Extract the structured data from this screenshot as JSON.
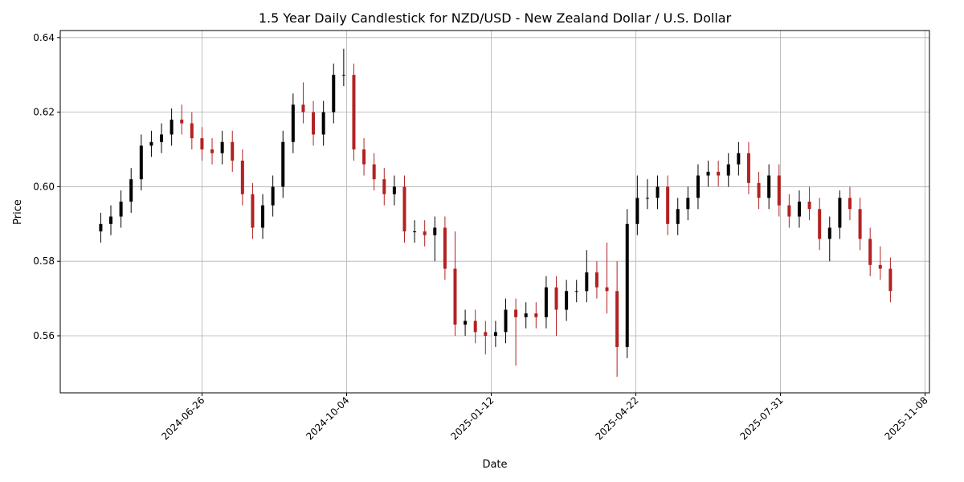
{
  "chart_data": {
    "type": "candlestick",
    "title": "1.5 Year Daily Candlestick for NZD/USD - New Zealand Dollar / U.S. Dollar",
    "x_label": "Date",
    "y_label": "Price",
    "x": [
      "2024-04-17",
      "2024-04-24",
      "2024-05-01",
      "2024-05-08",
      "2024-05-15",
      "2024-05-22",
      "2024-05-29",
      "2024-06-05",
      "2024-06-12",
      "2024-06-19",
      "2024-06-26",
      "2024-07-03",
      "2024-07-10",
      "2024-07-17",
      "2024-07-24",
      "2024-07-31",
      "2024-08-07",
      "2024-08-14",
      "2024-08-21",
      "2024-08-28",
      "2024-09-04",
      "2024-09-11",
      "2024-09-18",
      "2024-09-25",
      "2024-10-02",
      "2024-10-09",
      "2024-10-16",
      "2024-10-23",
      "2024-10-30",
      "2024-11-06",
      "2024-11-13",
      "2024-11-20",
      "2024-11-27",
      "2024-12-04",
      "2024-12-11",
      "2024-12-18",
      "2024-12-25",
      "2025-01-01",
      "2025-01-08",
      "2025-01-15",
      "2025-01-22",
      "2025-01-29",
      "2025-02-05",
      "2025-02-12",
      "2025-02-19",
      "2025-02-26",
      "2025-03-05",
      "2025-03-12",
      "2025-03-19",
      "2025-03-26",
      "2025-04-02",
      "2025-04-09",
      "2025-04-16",
      "2025-04-23",
      "2025-04-30",
      "2025-05-07",
      "2025-05-14",
      "2025-05-21",
      "2025-05-28",
      "2025-06-04",
      "2025-06-11",
      "2025-06-18",
      "2025-06-25",
      "2025-07-02",
      "2025-07-09",
      "2025-07-16",
      "2025-07-23",
      "2025-07-30",
      "2025-08-06",
      "2025-08-13",
      "2025-08-20",
      "2025-08-27",
      "2025-09-03",
      "2025-09-10",
      "2025-09-17",
      "2025-09-24",
      "2025-10-01",
      "2025-10-08",
      "2025-10-15"
    ],
    "open": [
      0.588,
      0.59,
      0.592,
      0.596,
      0.602,
      0.611,
      0.612,
      0.614,
      0.618,
      0.617,
      0.613,
      0.61,
      0.609,
      0.612,
      0.607,
      0.598,
      0.589,
      0.595,
      0.6,
      0.612,
      0.622,
      0.62,
      0.614,
      0.62,
      0.63,
      0.63,
      0.61,
      0.606,
      0.602,
      0.598,
      0.6,
      0.588,
      0.588,
      0.587,
      0.589,
      0.578,
      0.563,
      0.564,
      0.561,
      0.56,
      0.561,
      0.567,
      0.565,
      0.566,
      0.565,
      0.573,
      0.567,
      0.572,
      0.572,
      0.577,
      0.573,
      0.572,
      0.557,
      0.59,
      0.597,
      0.597,
      0.6,
      0.59,
      0.594,
      0.597,
      0.603,
      0.604,
      0.603,
      0.606,
      0.609,
      0.601,
      0.597,
      0.603,
      0.595,
      0.592,
      0.596,
      0.594,
      0.586,
      0.589,
      0.597,
      0.594,
      0.586,
      0.579,
      0.578
    ],
    "high": [
      0.593,
      0.595,
      0.599,
      0.605,
      0.614,
      0.615,
      0.617,
      0.621,
      0.622,
      0.62,
      0.616,
      0.613,
      0.615,
      0.615,
      0.61,
      0.601,
      0.598,
      0.603,
      0.615,
      0.625,
      0.628,
      0.623,
      0.623,
      0.633,
      0.637,
      0.633,
      0.613,
      0.609,
      0.605,
      0.603,
      0.603,
      0.591,
      0.591,
      0.592,
      0.592,
      0.588,
      0.567,
      0.567,
      0.564,
      0.564,
      0.57,
      0.57,
      0.569,
      0.569,
      0.576,
      0.576,
      0.575,
      0.575,
      0.583,
      0.58,
      0.585,
      0.58,
      0.594,
      0.603,
      0.602,
      0.603,
      0.603,
      0.597,
      0.6,
      0.606,
      0.607,
      0.607,
      0.609,
      0.612,
      0.612,
      0.604,
      0.606,
      0.606,
      0.598,
      0.599,
      0.6,
      0.597,
      0.592,
      0.599,
      0.6,
      0.597,
      0.589,
      0.584,
      0.581
    ],
    "low": [
      0.585,
      0.587,
      0.589,
      0.593,
      0.599,
      0.608,
      0.609,
      0.611,
      0.614,
      0.61,
      0.607,
      0.606,
      0.606,
      0.604,
      0.595,
      0.586,
      0.586,
      0.592,
      0.597,
      0.609,
      0.617,
      0.611,
      0.611,
      0.617,
      0.627,
      0.607,
      0.603,
      0.599,
      0.595,
      0.595,
      0.585,
      0.585,
      0.584,
      0.58,
      0.575,
      0.56,
      0.56,
      0.558,
      0.555,
      0.557,
      0.558,
      0.552,
      0.562,
      0.562,
      0.562,
      0.56,
      0.564,
      0.569,
      0.569,
      0.57,
      0.566,
      0.549,
      0.554,
      0.587,
      0.594,
      0.594,
      0.587,
      0.587,
      0.591,
      0.594,
      0.6,
      0.6,
      0.6,
      0.603,
      0.598,
      0.594,
      0.594,
      0.592,
      0.589,
      0.589,
      0.591,
      0.583,
      0.58,
      0.586,
      0.591,
      0.583,
      0.576,
      0.575,
      0.569
    ],
    "close": [
      0.59,
      0.592,
      0.596,
      0.602,
      0.611,
      0.612,
      0.614,
      0.618,
      0.617,
      0.613,
      0.61,
      0.609,
      0.612,
      0.607,
      0.598,
      0.589,
      0.595,
      0.6,
      0.612,
      0.622,
      0.62,
      0.614,
      0.62,
      0.63,
      0.63,
      0.61,
      0.606,
      0.602,
      0.598,
      0.6,
      0.588,
      0.588,
      0.587,
      0.589,
      0.578,
      0.563,
      0.564,
      0.561,
      0.56,
      0.561,
      0.567,
      0.565,
      0.566,
      0.565,
      0.573,
      0.567,
      0.572,
      0.572,
      0.577,
      0.573,
      0.572,
      0.557,
      0.59,
      0.597,
      0.597,
      0.6,
      0.59,
      0.594,
      0.597,
      0.603,
      0.604,
      0.603,
      0.606,
      0.609,
      0.601,
      0.597,
      0.603,
      0.595,
      0.592,
      0.596,
      0.594,
      0.586,
      0.589,
      0.597,
      0.594,
      0.586,
      0.579,
      0.578,
      0.572
    ],
    "up_color": "#000000",
    "down_color": "#b22222",
    "xlim": [
      "2024-03-20",
      "2025-11-11"
    ],
    "xticks": [
      "2024-06-26",
      "2024-10-04",
      "2025-01-12",
      "2025-04-22",
      "2025-07-31",
      "2025-11-08"
    ],
    "ylim": [
      0.5447,
      0.6419
    ],
    "yticks": [
      0.56,
      0.58,
      {
        "value": 0.6,
        "label": "0.60"
      },
      0.62,
      0.64
    ],
    "grid": true
  }
}
